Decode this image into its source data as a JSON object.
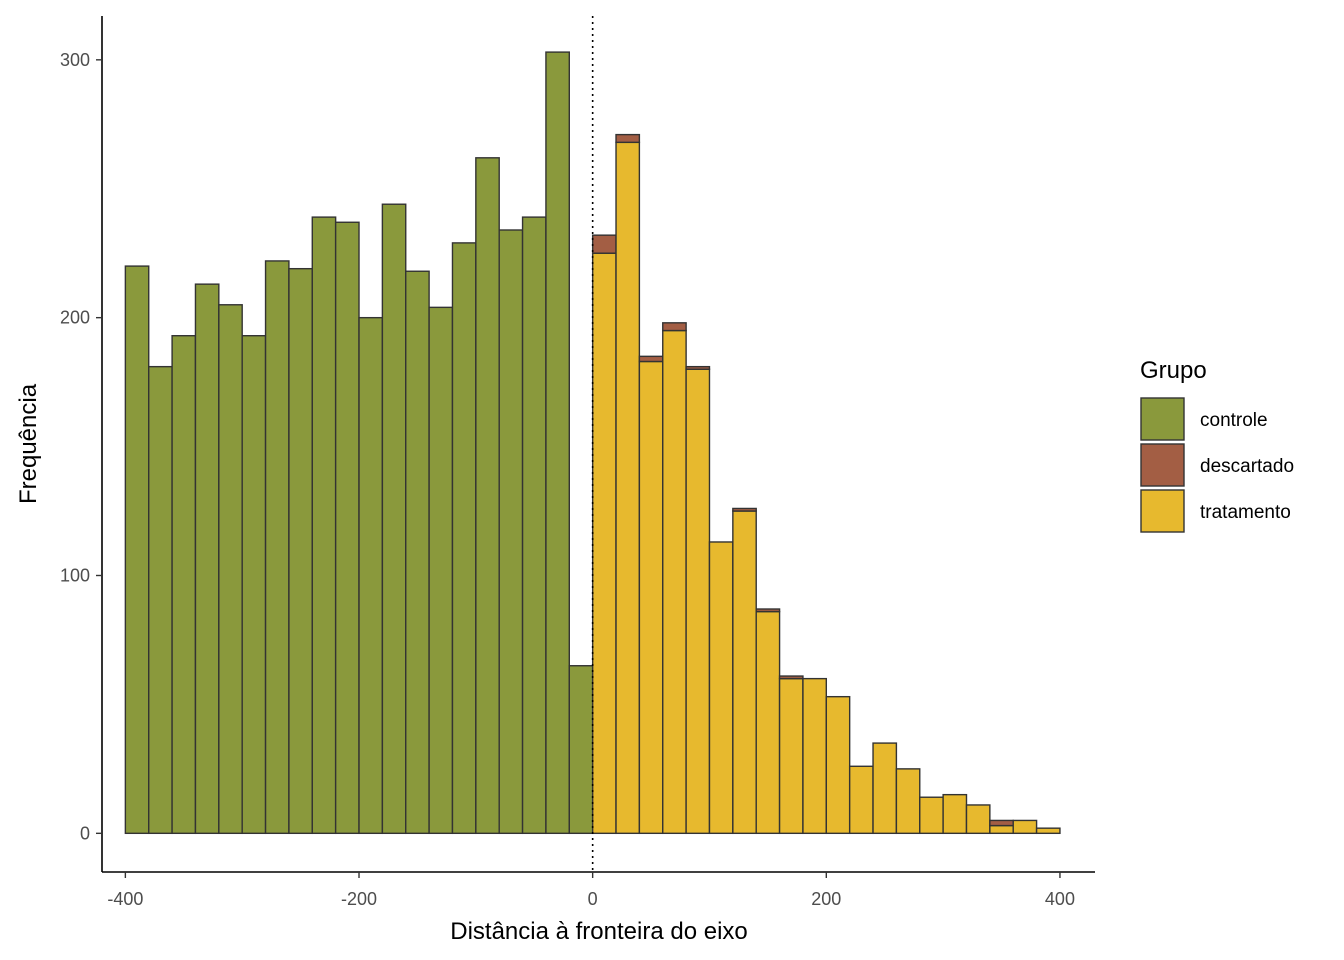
{
  "chart_data": {
    "type": "bar",
    "stacked": true,
    "title": "",
    "xlabel": "Distância à fronteira do eixo",
    "ylabel": "Frequência",
    "xlim": [
      -420,
      430
    ],
    "ylim": [
      -15,
      317
    ],
    "x_ticks": [
      -400,
      -200,
      0,
      200,
      400
    ],
    "x_tick_labels": [
      "-400",
      "-200",
      "0",
      "200",
      "400"
    ],
    "y_ticks": [
      0,
      100,
      200,
      300
    ],
    "y_tick_labels": [
      "0",
      "100",
      "200",
      "300"
    ],
    "vline_x": 0,
    "grid": false,
    "legend": {
      "title": "Grupo",
      "position": "right",
      "items": [
        {
          "name": "controle",
          "color": "#8a993c"
        },
        {
          "name": "descartado",
          "color": "#a35e44"
        },
        {
          "name": "tratamento",
          "color": "#e7b92e"
        }
      ]
    },
    "bin_edges": [
      -400,
      -380,
      -360,
      -340,
      -320,
      -300,
      -280,
      -260,
      -240,
      -220,
      -200,
      -180,
      -160,
      -140,
      -120,
      -100,
      -80,
      -60,
      -40,
      -20,
      0,
      20,
      40,
      60,
      80,
      100,
      120,
      140,
      160,
      180,
      200,
      220,
      240,
      260,
      280,
      300,
      320,
      340,
      360,
      380,
      400
    ],
    "series": [
      {
        "name": "controle",
        "color": "#8a993c",
        "values": [
          220,
          181,
          193,
          213,
          205,
          193,
          222,
          219,
          239,
          237,
          200,
          244,
          218,
          204,
          229,
          262,
          234,
          239,
          303,
          65,
          0,
          0,
          0,
          0,
          0,
          0,
          0,
          0,
          0,
          0,
          0,
          0,
          0,
          0,
          0,
          0,
          0,
          0,
          0,
          0
        ]
      },
      {
        "name": "tratamento",
        "color": "#e7b92e",
        "values": [
          0,
          0,
          0,
          0,
          0,
          0,
          0,
          0,
          0,
          0,
          0,
          0,
          0,
          0,
          0,
          0,
          0,
          0,
          0,
          0,
          225,
          268,
          183,
          195,
          180,
          113,
          125,
          86,
          60,
          60,
          53,
          26,
          35,
          25,
          14,
          15,
          11,
          3,
          5,
          2
        ]
      },
      {
        "name": "descartado",
        "color": "#a35e44",
        "values": [
          0,
          0,
          0,
          0,
          0,
          0,
          0,
          0,
          0,
          0,
          0,
          0,
          0,
          0,
          0,
          0,
          0,
          0,
          0,
          0,
          7,
          3,
          2,
          3,
          1,
          0,
          1,
          1,
          1,
          0,
          0,
          0,
          0,
          0,
          0,
          0,
          0,
          2,
          0,
          0
        ]
      }
    ]
  }
}
